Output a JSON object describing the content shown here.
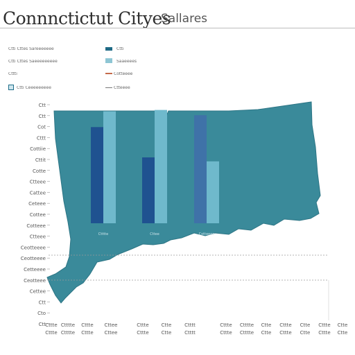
{
  "title": "Connnctictut Cityes",
  "subtitle": "Sallares",
  "colors": {
    "map_fill": "#3a8a9a",
    "map_edge": "#2d7585",
    "series_dark": "#1f5290",
    "series_light": "#6fb9cc",
    "series_mid": "#3f72a8",
    "grid_dashed": "#9a9a9a"
  },
  "legend": {
    "rows": [
      {
        "left_text": "Ctti Cttes Sareeeeeee",
        "right_text": "Ctti"
      },
      {
        "left_text": "Ctti Cttes Saeeeeeeeee",
        "right_text": "Saaeeees"
      },
      {
        "left_text": "Cttti",
        "right_text": "Cotteeee"
      },
      {
        "left_text": "Ctti Ceeeeeeeee",
        "right_text": "Ctteeee"
      }
    ]
  },
  "chart_data": {
    "type": "bar",
    "title": "Connnctictut Cityes",
    "subtitle": "Sallares",
    "categories": [
      "Ctttte",
      "Cttee",
      "Cotteeee"
    ],
    "series": [
      {
        "color": "#1f5290",
        "values": [
          73,
          50,
          82
        ]
      },
      {
        "color": "#6fb9cc",
        "values": [
          85,
          86,
          47
        ]
      }
    ],
    "ylim": [
      0,
      100
    ],
    "yticks": [
      "Ctt",
      "Ctt",
      "Cot",
      "Cttt",
      "Cottiie",
      "Cttit",
      "Cotte",
      "Ctteee",
      "Cattee",
      "Ceteee",
      "Cottee",
      "Cotteee",
      "Ctteee",
      "Ceotteeee",
      "Ceotteeee",
      "Cetteeee",
      "Ceotteee",
      "Cettee",
      "Ctt",
      "Cto",
      "Ctt"
    ],
    "xticks": [
      "Cttte",
      "Ctttte",
      "Cttte",
      "Cttee",
      "Cttte",
      "Ctte",
      "Ctttt",
      "Cttte",
      "Ctttte",
      "Ctte",
      "Cttte",
      "Ctte",
      "Cttte",
      "Ctte"
    ],
    "grid": true,
    "map_background": true
  }
}
